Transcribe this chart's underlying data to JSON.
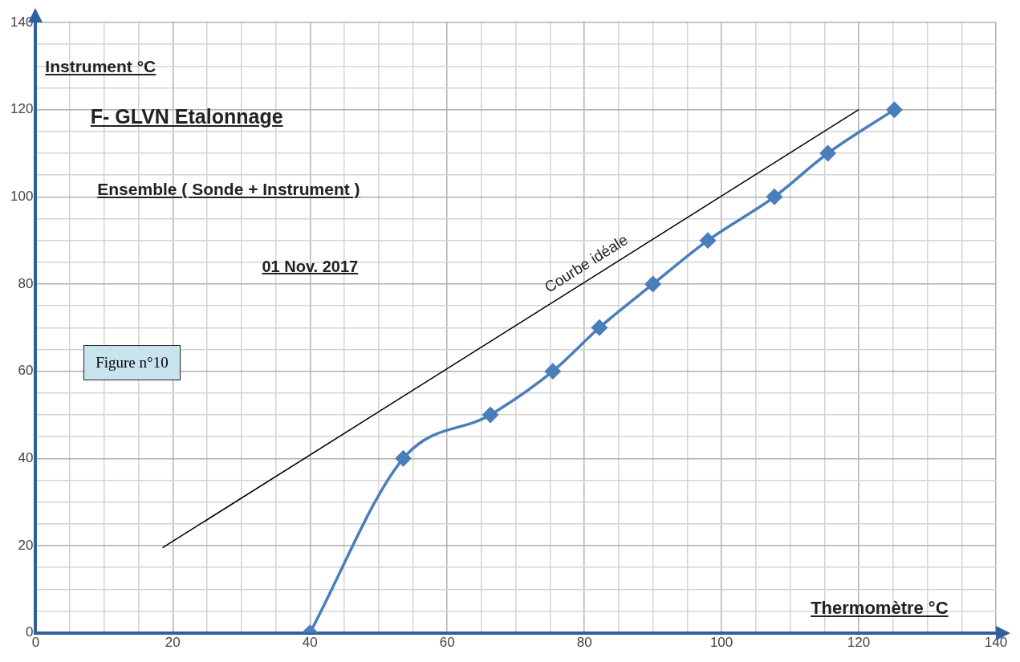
{
  "chart_data": {
    "type": "line",
    "title": "F- GLVN  Etalonnage",
    "subtitle": "Ensemble ( Sonde + Instrument )",
    "xlabel": "Thermomètre °C",
    "ylabel": "Instrument °C",
    "annotations": [
      "01 Nov. 2017",
      "Figure n°10"
    ],
    "series": [
      {
        "color": "#4a7ebb",
        "marker": "diamond",
        "x": [
          40,
          53.6,
          66.3,
          75.4,
          82.2,
          90,
          98,
          107.7,
          115.5,
          125.2
        ],
        "values": [
          0,
          40,
          50,
          60,
          70,
          80,
          90,
          100,
          110,
          120
        ]
      },
      {
        "name": "Courbe idéale",
        "color": "#000000",
        "marker": "none",
        "x": [
          18.5,
          120
        ],
        "values": [
          19.5,
          120
        ]
      }
    ],
    "xlim": [
      0,
      140
    ],
    "ylim": [
      0,
      140
    ],
    "xticks": [
      0,
      {
        "value": 5,
        "label": null
      },
      {
        "value": 10,
        "label": null
      },
      {
        "value": 15,
        "label": null
      },
      20,
      {
        "value": 25,
        "label": null
      },
      {
        "value": 30,
        "label": null
      },
      {
        "value": 35,
        "label": null
      },
      40,
      {
        "value": 45,
        "label": null
      },
      {
        "value": 50,
        "label": null
      },
      {
        "value": 55,
        "label": null
      },
      60,
      {
        "value": 65,
        "label": null
      },
      {
        "value": 70,
        "label": null
      },
      {
        "value": 75,
        "label": null
      },
      80,
      {
        "value": 85,
        "label": null
      },
      {
        "value": 90,
        "label": null
      },
      {
        "value": 95,
        "label": null
      },
      100,
      {
        "value": 105,
        "label": null
      },
      {
        "value": 110,
        "label": null
      },
      {
        "value": 115,
        "label": null
      },
      120,
      {
        "value": 125,
        "label": null
      },
      {
        "value": 130,
        "label": null
      },
      {
        "value": 135,
        "label": null
      },
      140
    ],
    "yticks": [
      0,
      {
        "value": 5,
        "label": null
      },
      {
        "value": 10,
        "label": null
      },
      {
        "value": 15,
        "label": null
      },
      20,
      {
        "value": 25,
        "label": null
      },
      {
        "value": 30,
        "label": null
      },
      {
        "value": 35,
        "label": null
      },
      40,
      {
        "value": 45,
        "label": null
      },
      {
        "value": 50,
        "label": null
      },
      {
        "value": 55,
        "label": null
      },
      60,
      {
        "value": 65,
        "label": null
      },
      {
        "value": 70,
        "label": null
      },
      {
        "value": 75,
        "label": null
      },
      80,
      {
        "value": 85,
        "label": null
      },
      {
        "value": 90,
        "label": null
      },
      {
        "value": 95,
        "label": null
      },
      100,
      {
        "value": 105,
        "label": null
      },
      {
        "value": 110,
        "label": null
      },
      {
        "value": 115,
        "label": null
      },
      120,
      {
        "value": 125,
        "label": null
      },
      {
        "value": 130,
        "label": null
      },
      {
        "value": 135,
        "label": null
      },
      140
    ],
    "grid": true,
    "legend": false,
    "line_style": "solid"
  }
}
